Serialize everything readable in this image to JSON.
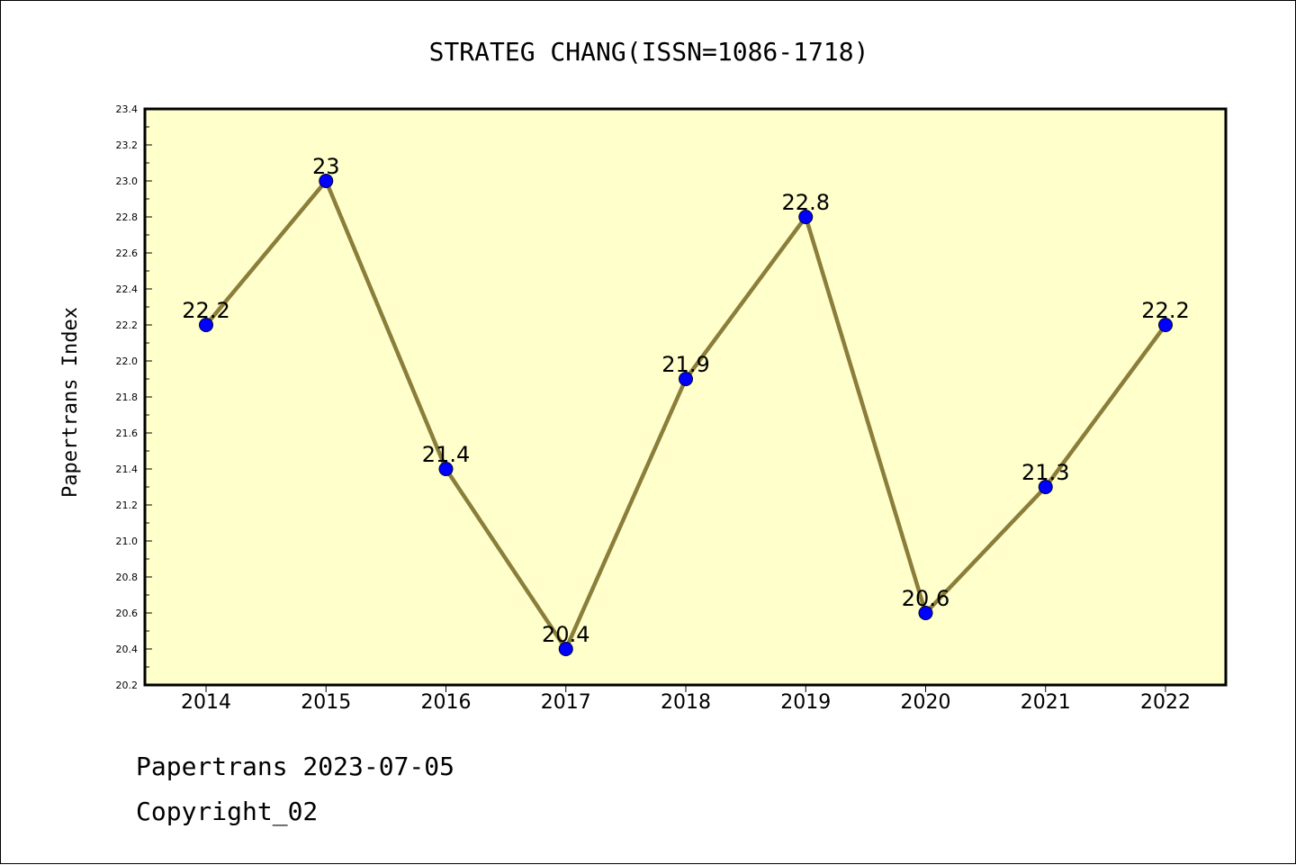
{
  "chart_data": {
    "type": "line",
    "title": "STRATEG CHANG(ISSN=1086-1718)",
    "xlabel": "",
    "ylabel": "Papertrans Index",
    "categories": [
      "2014",
      "2015",
      "2016",
      "2017",
      "2018",
      "2019",
      "2020",
      "2021",
      "2022"
    ],
    "values": [
      22.2,
      23,
      21.4,
      20.4,
      21.9,
      22.8,
      20.6,
      21.3,
      22.2
    ],
    "data_labels": [
      "22.2",
      "23",
      "21.4",
      "20.4",
      "21.9",
      "22.8",
      "20.6",
      "21.3",
      "22.2"
    ],
    "ylim": [
      20.2,
      23.4
    ],
    "yticks": [
      "20.2",
      "20.4",
      "20.6",
      "20.8",
      "21.0",
      "21.2",
      "21.4",
      "21.6",
      "21.8",
      "22.0",
      "22.2",
      "22.4",
      "22.6",
      "22.8",
      "23.0",
      "23.2",
      "23.4"
    ],
    "grid": false,
    "colors": {
      "plot_background": "#ffffcc",
      "line": "#8b7d3a",
      "marker": "#0000ff"
    }
  },
  "footer": {
    "line1": "Papertrans 2023-07-05",
    "line2": "Copyright_02"
  }
}
